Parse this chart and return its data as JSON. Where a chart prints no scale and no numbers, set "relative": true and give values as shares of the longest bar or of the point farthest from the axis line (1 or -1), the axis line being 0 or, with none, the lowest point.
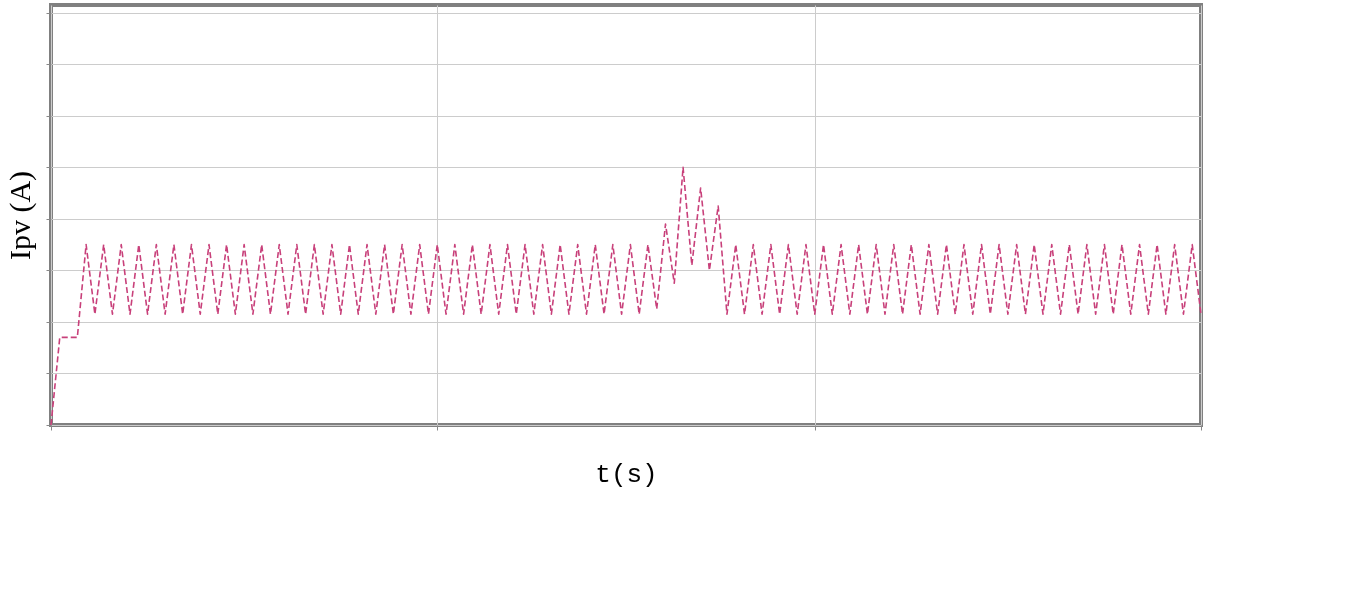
{
  "chart_data": {
    "type": "line",
    "xlabel": "t(s)",
    "ylabel": "Ipv (A)",
    "relative": true,
    "grid": true,
    "tick_labels": false,
    "line_style": "dashed",
    "marker": "none",
    "categories": [
      null,
      null,
      null,
      null,
      null,
      null,
      null,
      null,
      null,
      null,
      null,
      null,
      null,
      null,
      null,
      null,
      null,
      null,
      null,
      null,
      null,
      null,
      null,
      null,
      null,
      null,
      null,
      null,
      null,
      null,
      null,
      null,
      null,
      null,
      null,
      null,
      null,
      null,
      null,
      null,
      null,
      null,
      null,
      null,
      null,
      null,
      null,
      null,
      null,
      null,
      null,
      null,
      null,
      null,
      null,
      null,
      null,
      null,
      null,
      null,
      null,
      null,
      null,
      null,
      null,
      null,
      null,
      null,
      null,
      null,
      null,
      null,
      null,
      null,
      null,
      null,
      null,
      null,
      null,
      null,
      null,
      null,
      null,
      null,
      null,
      null,
      null,
      null,
      null,
      null,
      null,
      null,
      null,
      null,
      null,
      null,
      null,
      null,
      null,
      null,
      null,
      null,
      null,
      null,
      null,
      null,
      null,
      null,
      null,
      null,
      null,
      null,
      null,
      null,
      null,
      null,
      null,
      null,
      null,
      null,
      null,
      null,
      null,
      null,
      null,
      null,
      null,
      null,
      null,
      null,
      null,
      null
    ],
    "series": [
      {
        "color": "#c8407a",
        "values": [
          0,
          0.34,
          0.34,
          0.34,
          0.7,
          0.43,
          0.7,
          0.43,
          0.7,
          0.43,
          0.7,
          0.43,
          0.7,
          0.43,
          0.7,
          0.43,
          0.7,
          0.43,
          0.7,
          0.43,
          0.7,
          0.43,
          0.7,
          0.43,
          0.7,
          0.43,
          0.7,
          0.43,
          0.7,
          0.43,
          0.7,
          0.43,
          0.7,
          0.43,
          0.7,
          0.43,
          0.7,
          0.43,
          0.7,
          0.43,
          0.7,
          0.43,
          0.7,
          0.43,
          0.7,
          0.43,
          0.7,
          0.43,
          0.7,
          0.43,
          0.7,
          0.43,
          0.7,
          0.43,
          0.7,
          0.43,
          0.7,
          0.43,
          0.7,
          0.43,
          0.7,
          0.43,
          0.7,
          0.43,
          0.7,
          0.43,
          0.7,
          0.43,
          0.7,
          0.45,
          0.78,
          0.55,
          1.0,
          0.62,
          0.92,
          0.6,
          0.85,
          0.43,
          0.7,
          0.43,
          0.7,
          0.43,
          0.7,
          0.43,
          0.7,
          0.43,
          0.7,
          0.43,
          0.7,
          0.43,
          0.7,
          0.43,
          0.7,
          0.43,
          0.7,
          0.43,
          0.7,
          0.43,
          0.7,
          0.43,
          0.7,
          0.43,
          0.7,
          0.43,
          0.7,
          0.43,
          0.7,
          0.43,
          0.7,
          0.43,
          0.7,
          0.43,
          0.7,
          0.43,
          0.7,
          0.43,
          0.7,
          0.43,
          0.7,
          0.43,
          0.7,
          0.43,
          0.7,
          0.43,
          0.7,
          0.43,
          0.7,
          0.43,
          0.7,
          0.43,
          0.7,
          0.43
        ]
      }
    ]
  }
}
